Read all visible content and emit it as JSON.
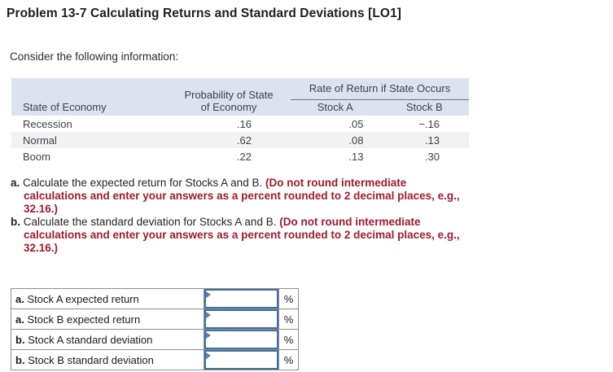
{
  "header": {
    "title": "Problem 13-7 Calculating Returns and Standard Deviations [LO1]"
  },
  "intro": "Consider the following information:",
  "info_table": {
    "spanner": "Rate of Return if State Occurs",
    "headers": {
      "state": "State of Economy",
      "probability_lines": [
        "Probability of State",
        "of Economy"
      ],
      "stock_a": "Stock A",
      "stock_b": "Stock B"
    },
    "rows": [
      {
        "state": "Recession",
        "probability": ".16",
        "stock_a": ".05",
        "stock_b": "−.16"
      },
      {
        "state": "Normal",
        "probability": ".62",
        "stock_a": ".08",
        "stock_b": ".13"
      },
      {
        "state": "Boom",
        "probability": ".22",
        "stock_a": ".13",
        "stock_b": ".30"
      }
    ],
    "colors": {
      "header_bg": "#dce3ee",
      "stripe_bg": "#f2f2f2",
      "text": "#39434f"
    }
  },
  "instructions": [
    {
      "marker": "a.",
      "lines": [
        [
          {
            "kind": "plain",
            "text": "Calculate the expected return for Stocks A and B. "
          },
          {
            "kind": "red",
            "text": "(Do not round intermediate"
          }
        ],
        [
          {
            "kind": "red",
            "text": "calculations and enter your answers as a percent rounded to 2 decimal places, e.g.,"
          }
        ],
        [
          {
            "kind": "red",
            "text": "32.16.)"
          }
        ]
      ]
    },
    {
      "marker": "b.",
      "lines": [
        [
          {
            "kind": "plain",
            "text": "Calculate the standard deviation for Stocks A and B. "
          },
          {
            "kind": "red",
            "text": "(Do not round intermediate"
          }
        ],
        [
          {
            "kind": "red",
            "text": "calculations and enter your answers as a percent rounded to 2 decimal places, e.g.,"
          }
        ],
        [
          {
            "kind": "red",
            "text": "32.16.)"
          }
        ]
      ]
    }
  ],
  "answer_table": {
    "rows": [
      {
        "prefix": "a.",
        "label": "Stock A expected return",
        "unit": "%",
        "value": ""
      },
      {
        "prefix": "a.",
        "label": "Stock B expected return",
        "unit": "%",
        "value": ""
      },
      {
        "prefix": "b.",
        "label": "Stock A standard deviation",
        "unit": "%",
        "value": ""
      },
      {
        "prefix": "b.",
        "label": "Stock B standard deviation",
        "unit": "%",
        "value": ""
      }
    ],
    "colors": {
      "grid_border": "#8e8e8e",
      "input_border": "#41719c",
      "flag": "#4f81bd"
    }
  },
  "colors": {
    "red_text": "#9e1b2e",
    "title_text": "#1e1e1e",
    "body_text": "#242424"
  }
}
